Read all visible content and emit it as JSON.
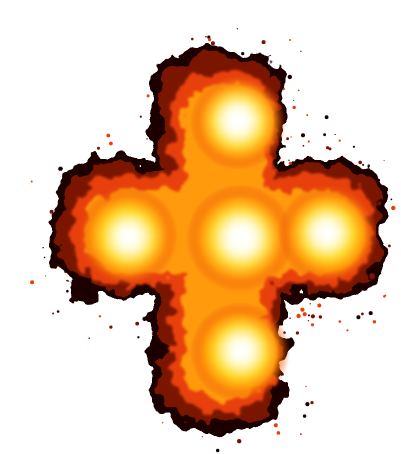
{
  "scene": {
    "subject": "explosion-sprite",
    "shape": "cross",
    "background_color": "#ffffff",
    "colors": {
      "core": "#ffffff",
      "hot": "#fff27a",
      "bright": "#ffd21a",
      "mid": "#ff9a0a",
      "outer": "#e8400a",
      "dark": "#7a1203",
      "smoke": "#1a0200"
    }
  }
}
